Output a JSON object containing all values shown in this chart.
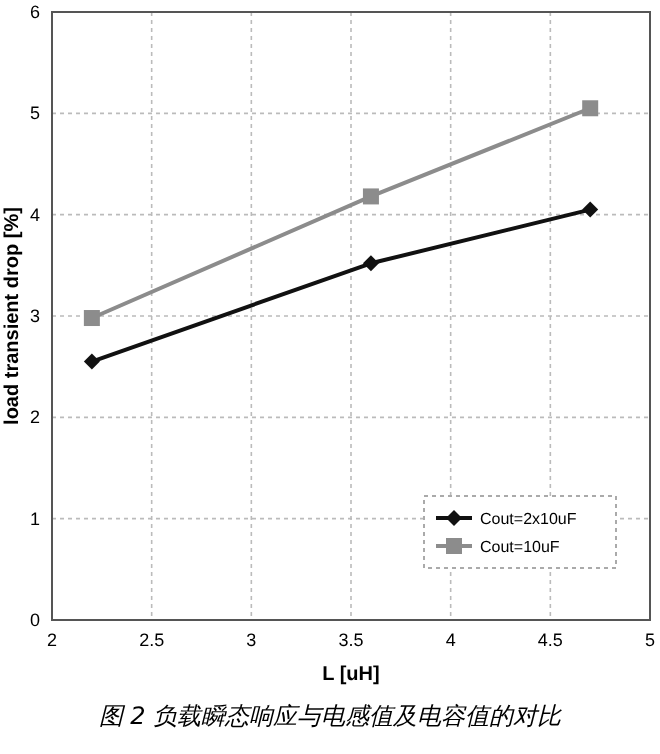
{
  "chart_data": {
    "type": "line",
    "xlabel": "L [uH]",
    "ylabel": "load transient drop [%]",
    "x": [
      2.2,
      3.6,
      4.7
    ],
    "series": [
      {
        "name": "Cout=2x10uF",
        "color": "#111111",
        "values": [
          2.55,
          3.52,
          4.05
        ],
        "marker": "diamond"
      },
      {
        "name": "Cout=10uF",
        "color": "#8c8c8c",
        "values": [
          2.98,
          4.18,
          5.05
        ],
        "marker": "square"
      }
    ],
    "xlim": [
      2,
      5
    ],
    "xticks": [
      2,
      2.5,
      3,
      3.5,
      4,
      4.5,
      5
    ],
    "ylim": [
      0,
      6
    ],
    "yticks": [
      0,
      1,
      2,
      3,
      4,
      5,
      6
    ],
    "grid": true,
    "legend": "bottom right",
    "annotations": [
      "图 2  负载瞬态响应与电感值及电容值的对比"
    ]
  }
}
